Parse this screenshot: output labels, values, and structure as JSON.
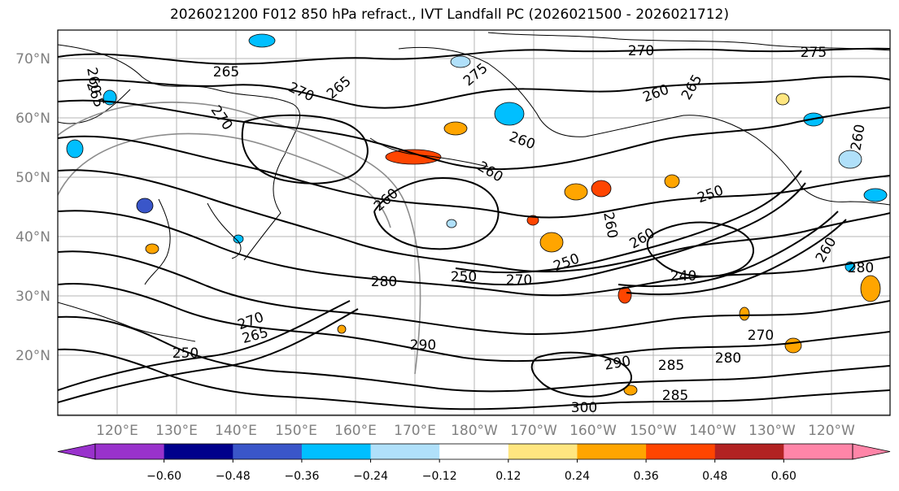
{
  "title": "2026021200 F012 850 hPa refract., IVT Landfall PC (2026021500 - 2026021712)",
  "lat_labels": [
    "70°N",
    "60°N",
    "50°N",
    "40°N",
    "30°N",
    "20°N"
  ],
  "lon_labels": [
    "120°E",
    "130°E",
    "140°E",
    "150°E",
    "160°E",
    "170°E",
    "180°W",
    "170°W",
    "160°W",
    "150°W",
    "140°W",
    "130°W",
    "120°W"
  ],
  "colorbar": {
    "colors": [
      "#9932cc",
      "#00008b",
      "#3a56c9",
      "#00bfff",
      "#b0e0fa",
      "#ffffff",
      "#ffe680",
      "#ffa500",
      "#ff4500",
      "#b22222",
      "#ff85a8"
    ],
    "ticks": [
      "−0.60",
      "−0.48",
      "−0.36",
      "−0.24",
      "−0.12",
      "0.12",
      "0.24",
      "0.36",
      "0.48",
      "0.60"
    ]
  },
  "contour_labels": [
    {
      "text": "265"
    },
    {
      "text": "270"
    },
    {
      "text": "275"
    },
    {
      "text": "265"
    },
    {
      "text": "260"
    },
    {
      "text": "270"
    },
    {
      "text": "265"
    },
    {
      "text": "270"
    },
    {
      "text": "275"
    },
    {
      "text": "260"
    },
    {
      "text": "265"
    },
    {
      "text": "260"
    },
    {
      "text": "260"
    },
    {
      "text": "260"
    },
    {
      "text": "260"
    },
    {
      "text": "260"
    },
    {
      "text": "250"
    },
    {
      "text": "260"
    },
    {
      "text": "250"
    },
    {
      "text": "280"
    },
    {
      "text": "250"
    },
    {
      "text": "270"
    },
    {
      "text": "240"
    },
    {
      "text": "270"
    },
    {
      "text": "280"
    },
    {
      "text": "290"
    },
    {
      "text": "270"
    },
    {
      "text": "265"
    },
    {
      "text": "290"
    },
    {
      "text": "285"
    },
    {
      "text": "300"
    },
    {
      "text": "285"
    },
    {
      "text": "280"
    },
    {
      "text": "250"
    },
    {
      "text": "260"
    }
  ],
  "shaded_features": [
    {
      "value": -0.3
    },
    {
      "value": -0.24
    },
    {
      "value": -0.3
    },
    {
      "value": -0.3
    },
    {
      "value": -0.3
    },
    {
      "value": -0.24
    },
    {
      "value": -0.3
    },
    {
      "value": -0.42
    },
    {
      "value": -0.3
    },
    {
      "value": -0.3
    },
    {
      "value": -0.24
    },
    {
      "value": -0.3
    },
    {
      "value": 0.42
    },
    {
      "value": 0.3
    },
    {
      "value": 0.3
    },
    {
      "value": 0.42
    },
    {
      "value": 0.3
    },
    {
      "value": 0.3
    },
    {
      "value": 0.42
    },
    {
      "value": 0.3
    },
    {
      "value": 0.3
    },
    {
      "value": 0.3
    },
    {
      "value": 0.3
    },
    {
      "value": 0.42
    },
    {
      "value": 0.3
    },
    {
      "value": 0.3
    },
    {
      "value": 0.18
    }
  ]
}
